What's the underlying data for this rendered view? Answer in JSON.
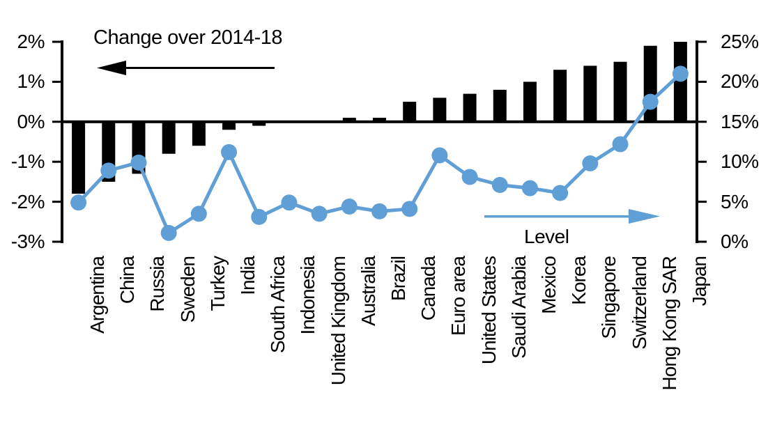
{
  "chart_data": {
    "type": "bar+line",
    "categories": [
      "Argentina",
      "China",
      "Russia",
      "Sweden",
      "Turkey",
      "India",
      "South Africa",
      "Indonesia",
      "United Kingdom",
      "Australia",
      "Brazil",
      "Canada",
      "Euro area",
      "United States",
      "Saudi Arabia",
      "Mexico",
      "Korea",
      "Singapore",
      "Switzerland",
      "Hong Kong SAR",
      "Japan"
    ],
    "series": [
      {
        "name": "Change over 2014-18",
        "type": "bar",
        "axis": "left",
        "color": "#000000",
        "values": [
          -1.8,
          -1.5,
          -1.3,
          -0.8,
          -0.6,
          -0.2,
          -0.1,
          0,
          0,
          0.1,
          0.1,
          0.5,
          0.6,
          0.7,
          0.8,
          1.0,
          1.3,
          1.4,
          1.5,
          1.9,
          2.0
        ]
      },
      {
        "name": "Level",
        "type": "line",
        "axis": "right",
        "color": "#5F9FD6",
        "values": [
          4.9,
          8.9,
          9.9,
          1.1,
          3.5,
          11.2,
          3.1,
          4.9,
          3.5,
          4.4,
          3.8,
          4.1,
          10.8,
          8.1,
          7.1,
          6.7,
          6.1,
          9.8,
          12.2,
          17.5,
          21.0
        ]
      }
    ],
    "left_axis": {
      "min": -3,
      "max": 2,
      "unit": "%",
      "tick_values": [
        2,
        1,
        0,
        -1,
        -2,
        -3
      ],
      "tick_labels": [
        "2%",
        "1%",
        "0%",
        "-1%",
        "-2%",
        "-3%"
      ]
    },
    "right_axis": {
      "min": 0,
      "max": 25,
      "unit": "%",
      "tick_values": [
        25,
        20,
        15,
        10,
        5,
        0
      ],
      "tick_labels": [
        "25%",
        "20%",
        "15%",
        "10%",
        "5%",
        "0%"
      ]
    },
    "annotations": {
      "bar_series": {
        "text": "Change over 2014-18",
        "arrow_direction": "left",
        "arrow_color": "#000000"
      },
      "line_series": {
        "text": "Level",
        "arrow_direction": "right",
        "arrow_color": "#5F9FD6"
      }
    },
    "layout_hints": {
      "grid": "off",
      "legend": "none",
      "zero_line": "bold horizontal line at left-axis 0% (right-axis 15%)",
      "category_labels": "rotated 90deg, reading bottom-to-top"
    }
  },
  "colors": {
    "background": "#FFFFFF",
    "bar": "#000000",
    "line": "#5F9FD6",
    "axis": "#000000"
  }
}
